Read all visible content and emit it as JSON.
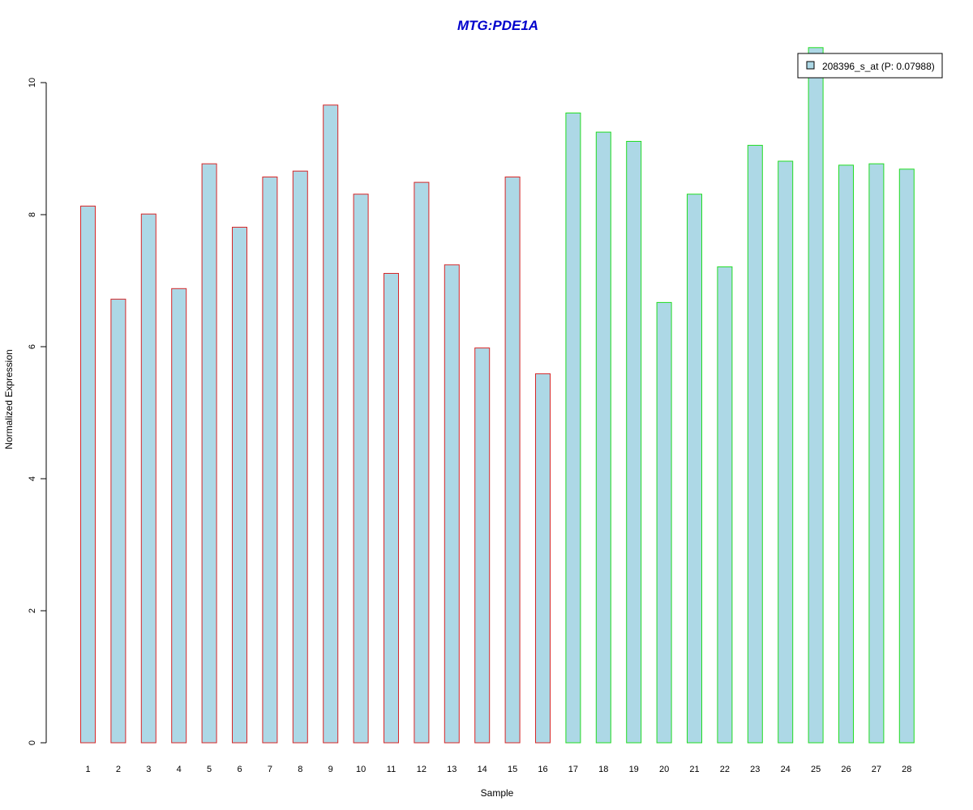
{
  "chart_data": {
    "type": "bar",
    "title": "MTG:PDE1A",
    "xlabel": "Sample",
    "ylabel": "Normalized Expression",
    "ylim": [
      0,
      10
    ],
    "yticks": [
      0,
      2,
      4,
      6,
      8,
      10
    ],
    "categories": [
      "1",
      "2",
      "3",
      "4",
      "5",
      "6",
      "7",
      "8",
      "9",
      "10",
      "11",
      "12",
      "13",
      "14",
      "15",
      "16",
      "17",
      "18",
      "19",
      "20",
      "21",
      "22",
      "23",
      "24",
      "25",
      "26",
      "27",
      "28"
    ],
    "series": [
      {
        "name": "208396_s_at (P: 0.07988)",
        "values": [
          8.13,
          6.72,
          8.01,
          6.88,
          8.77,
          7.81,
          8.57,
          8.66,
          9.66,
          8.31,
          7.11,
          8.49,
          7.24,
          5.98,
          8.57,
          5.59,
          9.54,
          9.25,
          9.11,
          6.67,
          8.31,
          7.21,
          9.05,
          8.81,
          10.53,
          8.75,
          8.77,
          8.69
        ]
      }
    ],
    "groups": [
      {
        "from": 1,
        "to": 16,
        "border_color": "#d62728"
      },
      {
        "from": 17,
        "to": 28,
        "border_color": "#22dd22"
      }
    ],
    "colors": {
      "bar_fill": "#add8e6",
      "title": "#0000cc",
      "group1_border": "#dd2222",
      "group2_border": "#22dd22"
    },
    "legend": {
      "placement": "top-right",
      "label": "208396_s_at (P: 0.07988)"
    },
    "grid": false
  }
}
